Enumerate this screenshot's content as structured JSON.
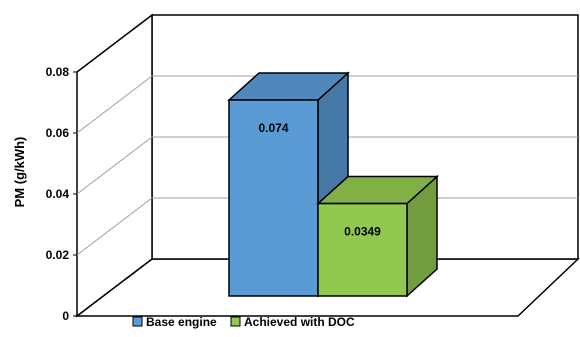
{
  "chart_data": {
    "type": "bar",
    "title": "",
    "xlabel": "",
    "ylabel": "PM (g/kWh)",
    "ylim": [
      0,
      0.08
    ],
    "yticks": [
      "0",
      "0.02",
      "0.04",
      "0.06",
      "0.08"
    ],
    "grid": true,
    "legend_position": "bottom",
    "series": [
      {
        "name": "Base engine",
        "values": [
          0.074
        ],
        "label": "0.074",
        "color": "#5b9bd5"
      },
      {
        "name": "Achieved with DOC",
        "values": [
          0.0349
        ],
        "label": "0.0349",
        "color": "#92c84f"
      }
    ]
  }
}
